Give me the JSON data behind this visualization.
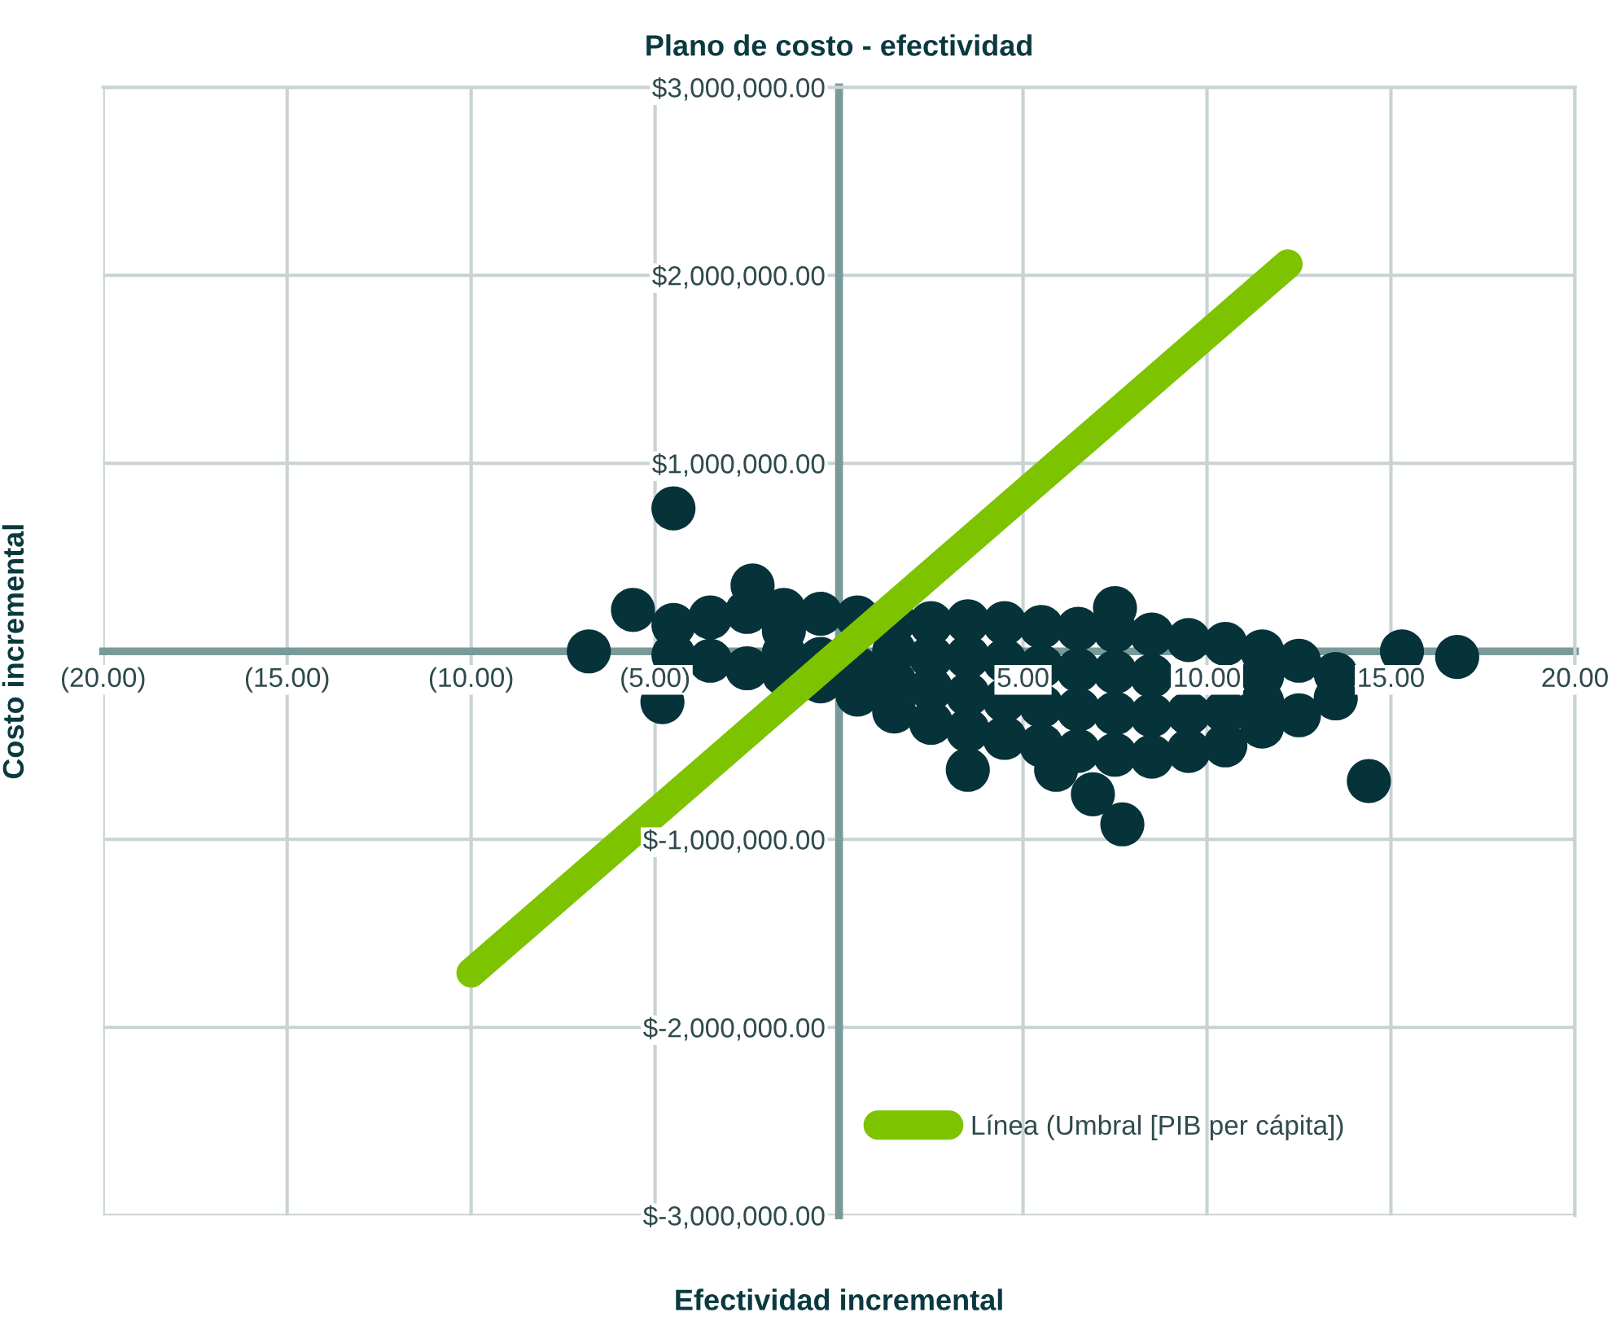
{
  "chart_data": {
    "type": "scatter",
    "title": "Plano de costo - efectividad",
    "xlabel": "Efectividad incremental",
    "ylabel": "Costo incremental",
    "xlim": [
      -20,
      20
    ],
    "ylim": [
      -3000000,
      3000000
    ],
    "xticks": [
      {
        "value": -20,
        "label": "(20.00)"
      },
      {
        "value": -15,
        "label": "(15.00)"
      },
      {
        "value": -10,
        "label": "(10.00)"
      },
      {
        "value": -5,
        "label": "(5.00)"
      },
      {
        "value": 0,
        "label": null
      },
      {
        "value": 5,
        "label": "5.00"
      },
      {
        "value": 10,
        "label": "10.00"
      },
      {
        "value": 15,
        "label": "15.00"
      },
      {
        "value": 20,
        "label": "20.00"
      }
    ],
    "yticks": [
      {
        "value": 3000000,
        "label": "$3,000,000.00"
      },
      {
        "value": 2000000,
        "label": "$2,000,000.00"
      },
      {
        "value": 1000000,
        "label": "$1,000,000.00"
      },
      {
        "value": 0,
        "label": null
      },
      {
        "value": -1000000,
        "label": "$-1,000,000.00"
      },
      {
        "value": -2000000,
        "label": "$-2,000,000.00"
      },
      {
        "value": -3000000,
        "label": "$-3,000,000.00"
      }
    ],
    "grid": true,
    "legend": "bottom",
    "series": [
      {
        "color": "#06323a",
        "marker": "circle",
        "x": [
          -6.8,
          -5.6,
          -4.5,
          -2.35,
          -4.8,
          3.5,
          5.9,
          6.9,
          7.7,
          7.5,
          14.4,
          15.3,
          16.8,
          -4.5,
          -4.5,
          -3.5,
          -3.5,
          -2.5,
          -2.5,
          -1.5,
          -1.5,
          -1.5,
          -1.5,
          -0.5,
          -0.5,
          -0.5,
          0.5,
          0.5,
          0.5,
          1.5,
          1.5,
          1.5,
          1.5,
          2.5,
          2.5,
          2.5,
          2.5,
          3.5,
          3.5,
          3.5,
          3.5,
          4.5,
          4.5,
          4.5,
          4.5,
          5.5,
          5.5,
          5.5,
          5.5,
          6.5,
          6.5,
          6.5,
          6.5,
          7.5,
          7.5,
          7.5,
          7.5,
          8.5,
          8.5,
          8.5,
          8.5,
          9.5,
          9.5,
          9.5,
          10.5,
          10.5,
          10.5,
          11.5,
          11.5,
          11.5,
          11.5,
          12.5,
          12.5,
          13.5,
          13.5
        ],
        "values": [
          0,
          220000,
          760000,
          350000,
          -270000,
          -630000,
          -630000,
          -760000,
          -920000,
          230000,
          -690000,
          0,
          -30000,
          140000,
          -20000,
          180000,
          -50000,
          210000,
          -90000,
          220000,
          110000,
          -10000,
          -120000,
          200000,
          -40000,
          -160000,
          180000,
          -90000,
          -230000,
          160000,
          0,
          -160000,
          -320000,
          150000,
          -30000,
          -200000,
          -380000,
          160000,
          -30000,
          -230000,
          -420000,
          150000,
          -50000,
          -260000,
          -460000,
          130000,
          -80000,
          -290000,
          -500000,
          120000,
          -100000,
          -310000,
          -530000,
          110000,
          -110000,
          -330000,
          -550000,
          90000,
          -130000,
          -340000,
          -560000,
          60000,
          -330000,
          -530000,
          40000,
          -320000,
          -500000,
          0,
          -130000,
          -270000,
          -400000,
          -50000,
          -340000,
          -120000,
          -250000
        ]
      },
      {
        "type": "line",
        "name": "Línea (Umbral [PIB per cápita])",
        "color": "#7dc300",
        "x": [
          -10,
          12.2
        ],
        "values": [
          -1710000,
          2060000
        ],
        "marker": "none",
        "line_style": "solid"
      }
    ]
  }
}
